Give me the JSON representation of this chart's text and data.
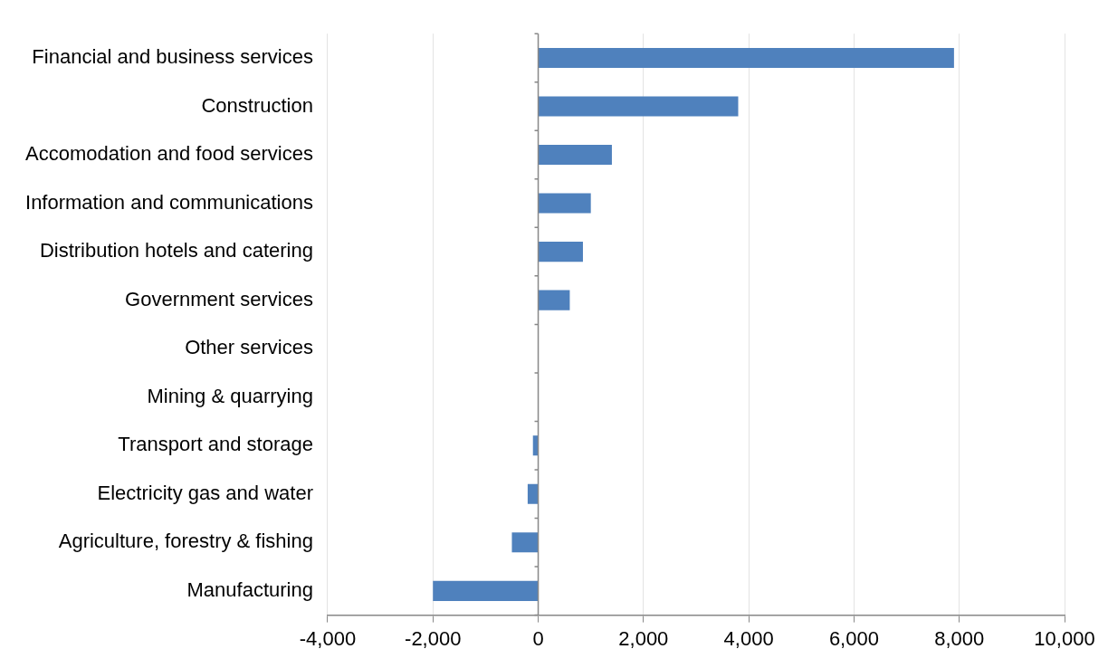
{
  "chart_data": {
    "type": "bar",
    "orientation": "horizontal",
    "categories": [
      "Financial and business services",
      "Construction",
      "Accomodation and food services",
      "Information and communications",
      "Distribution hotels and catering",
      "Government services",
      "Other services",
      "Mining & quarrying",
      "Transport and storage",
      "Electricity gas and water",
      "Agriculture, forestry & fishing",
      "Manufacturing"
    ],
    "values": [
      7900,
      3800,
      1400,
      1000,
      850,
      600,
      0,
      0,
      -100,
      -200,
      -500,
      -2000
    ],
    "color": "#4f81bd",
    "xlim": [
      -4000,
      10000
    ],
    "xticks": [
      {
        "value": -4000,
        "label": "-4,000"
      },
      {
        "value": -2000,
        "label": "-2,000"
      },
      0,
      {
        "value": 2000,
        "label": "2,000"
      },
      {
        "value": 4000,
        "label": "4,000"
      },
      {
        "value": 6000,
        "label": "6,000"
      },
      {
        "value": 8000,
        "label": "8,000"
      },
      {
        "value": 10000,
        "label": "10,000"
      }
    ],
    "grid": "x",
    "legend": false
  }
}
